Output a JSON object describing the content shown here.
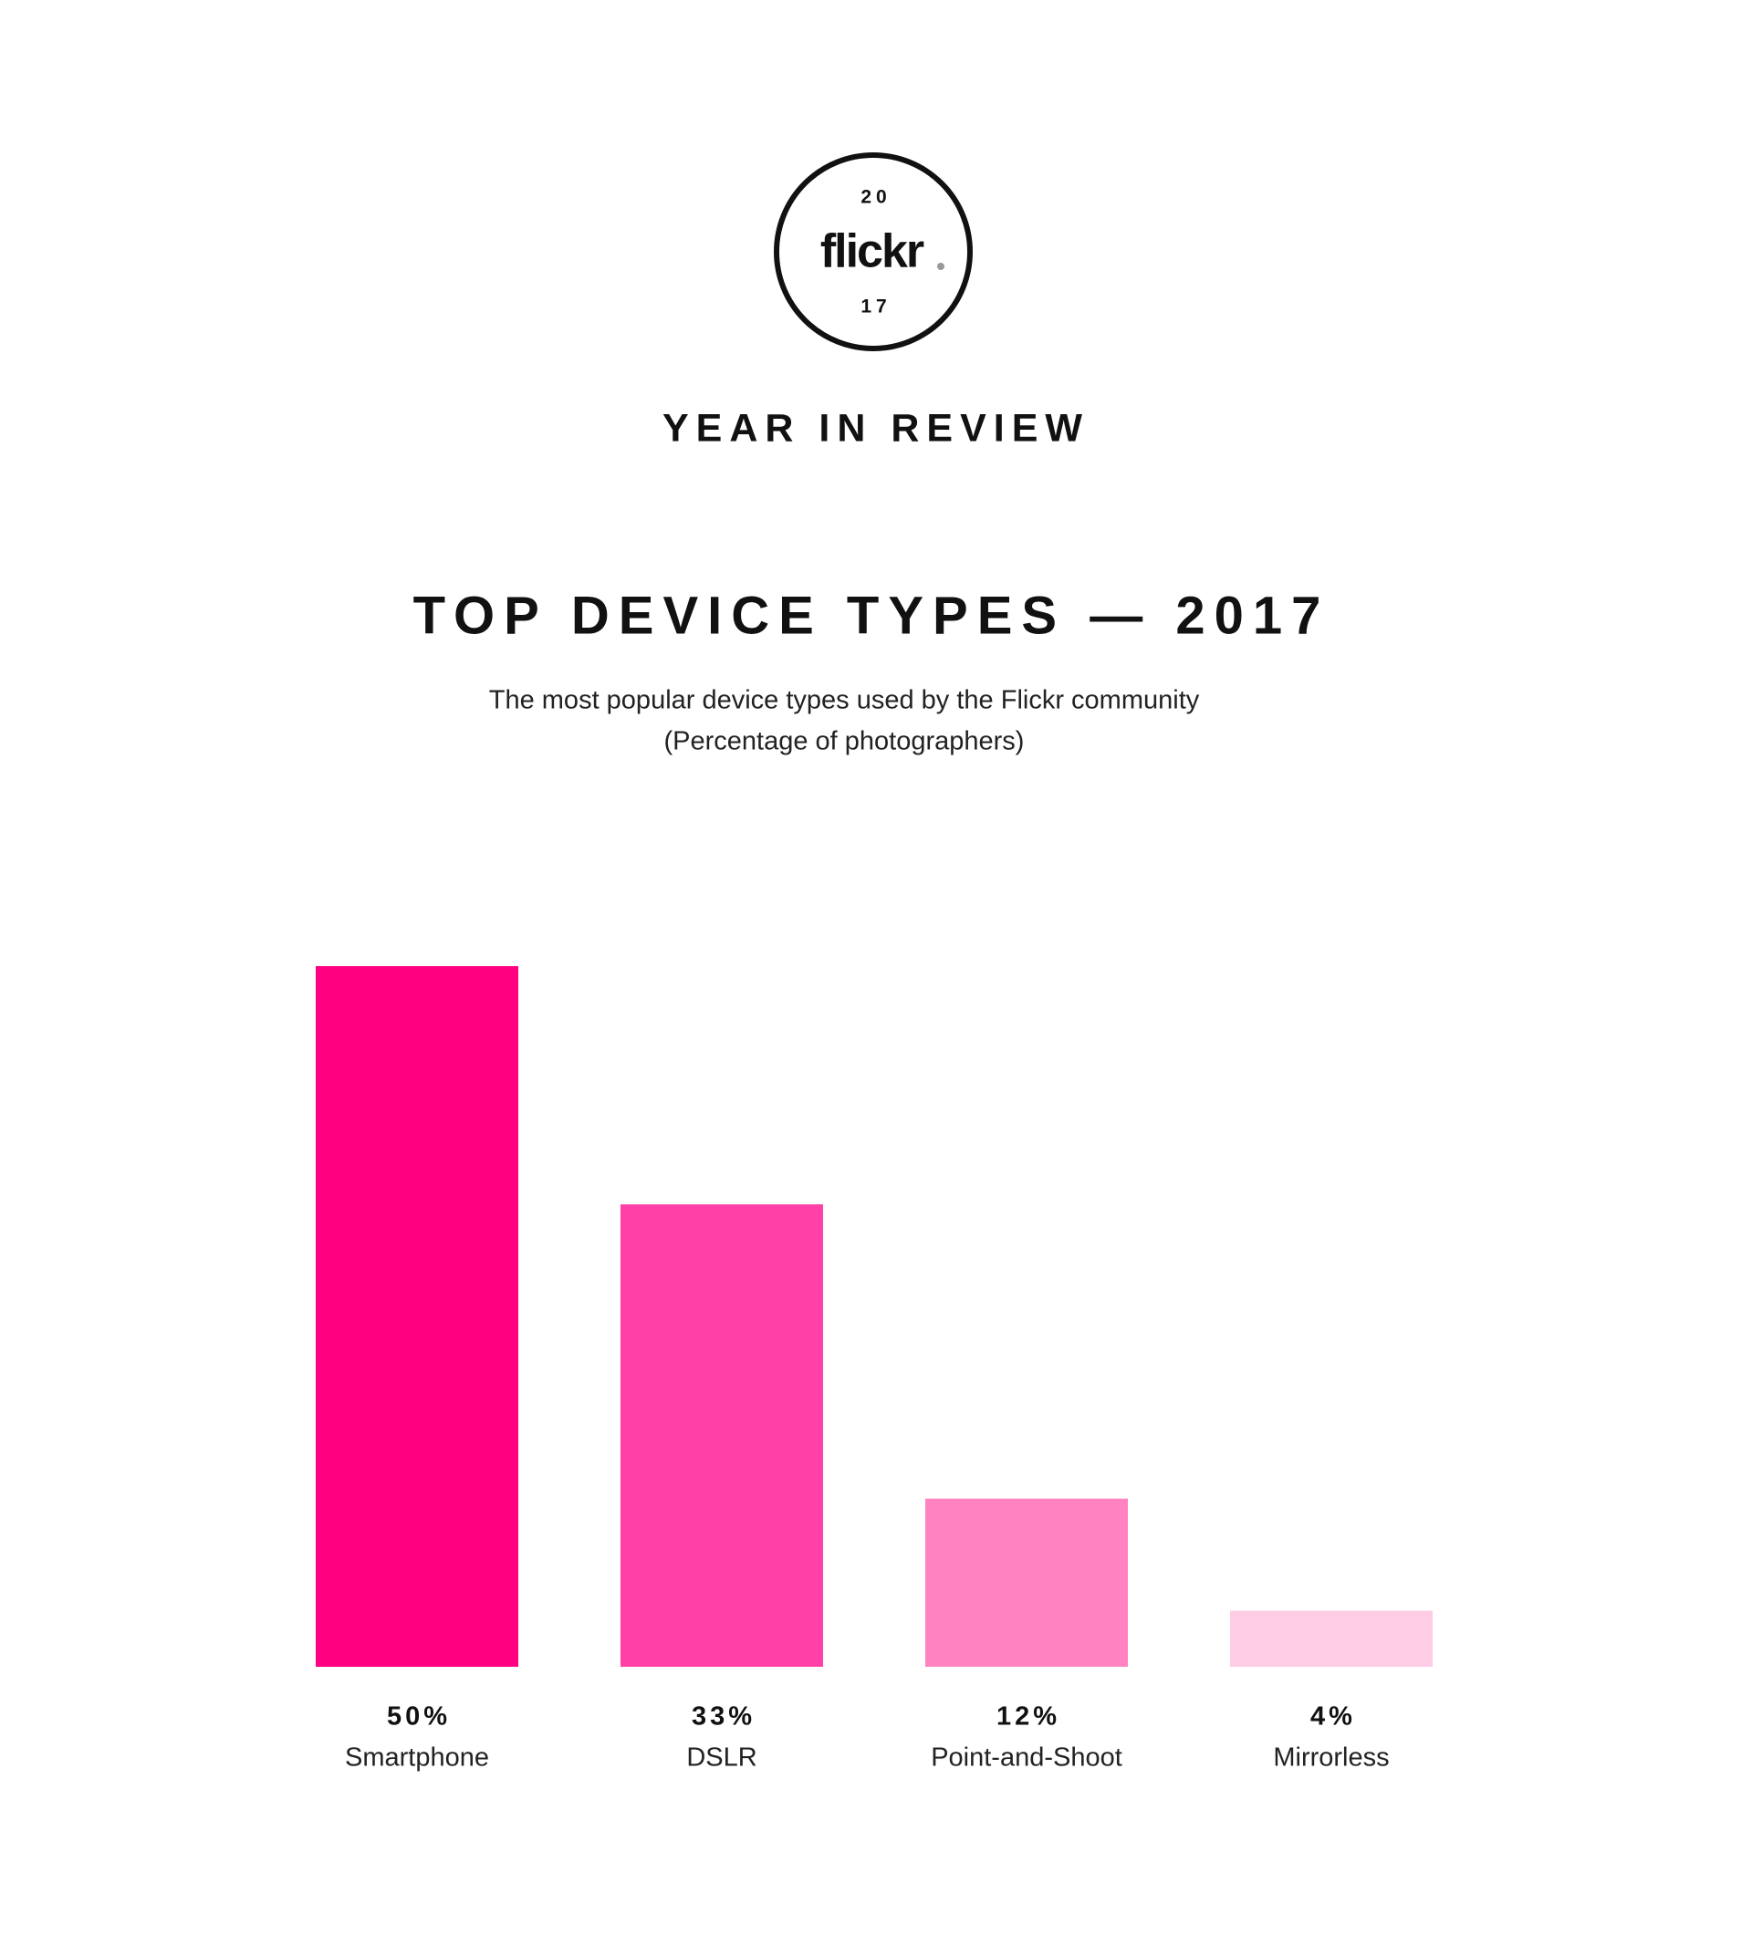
{
  "header": {
    "logo_top": "20",
    "logo": "flickr",
    "logo_bottom": "17",
    "title": "YEAR IN REVIEW"
  },
  "chart_data": {
    "type": "bar",
    "title": "TOP DEVICE TYPES — 2017",
    "subtitle": [
      "The most popular device types used by the Flickr community",
      "(Percentage of photographers)"
    ],
    "categories": [
      "Smartphone",
      "DSLR",
      "Point-and-Shoot",
      "Mirrorless"
    ],
    "values": [
      50,
      33,
      12,
      4
    ],
    "value_labels": [
      "50%",
      "33%",
      "12%",
      "4%"
    ],
    "colors": [
      "#ff0080",
      "#ff40a6",
      "#ff83c1",
      "#ffcce6"
    ]
  }
}
